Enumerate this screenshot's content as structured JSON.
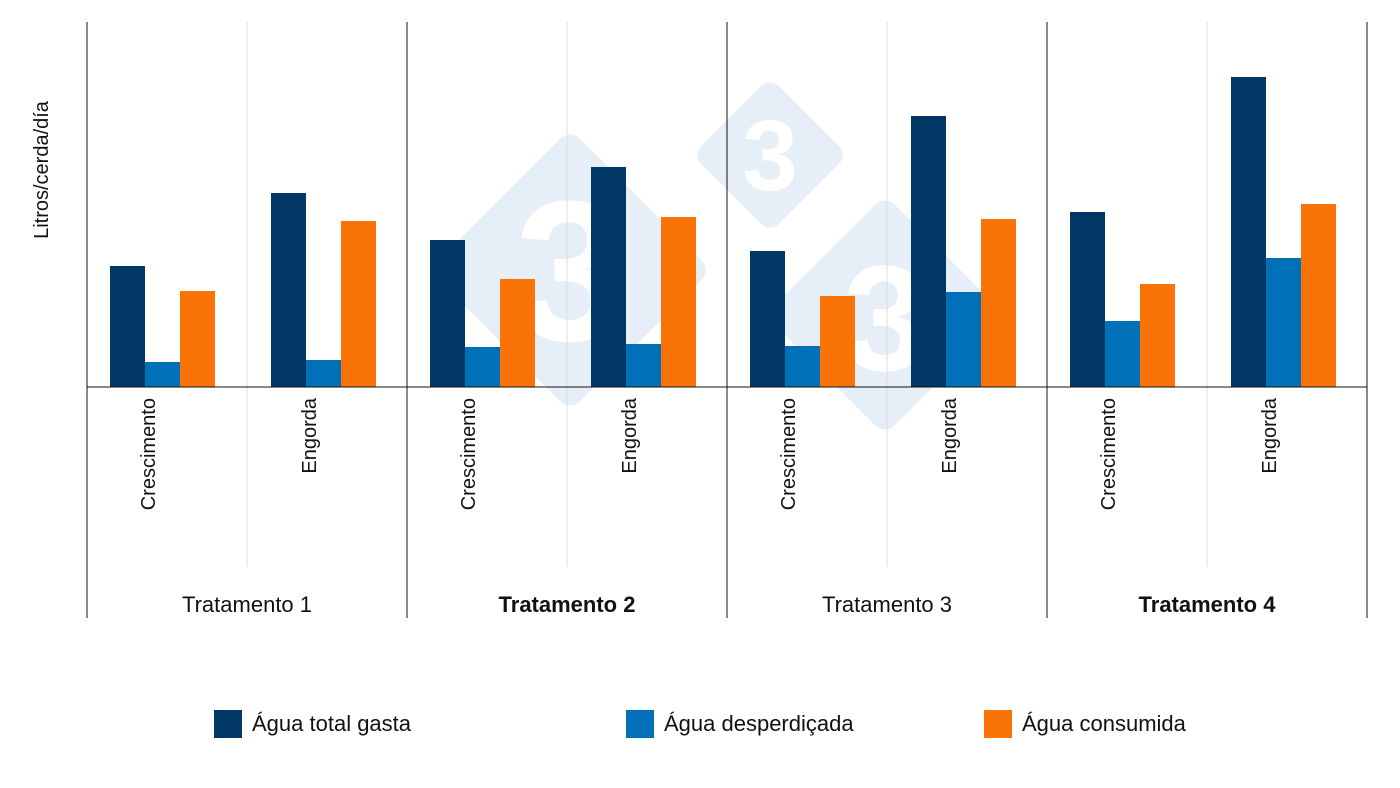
{
  "chart_data": {
    "type": "bar",
    "ylabel": "Litros/cerda/día",
    "ylim": [
      0,
      365
    ],
    "y_ticks_shown": false,
    "grid": false,
    "legend_position": "bottom",
    "groups": [
      {
        "label": "Tratamento 1",
        "bold": false
      },
      {
        "label": "Tratamento 2",
        "bold": true
      },
      {
        "label": "Tratamento 3",
        "bold": false
      },
      {
        "label": "Tratamento 4",
        "bold": true
      }
    ],
    "categories": [
      "Crescimento",
      "Engorda"
    ],
    "series": [
      {
        "name": "Água total gasta",
        "color": "#003764",
        "values": [
          [
            121,
            194
          ],
          [
            147,
            220
          ],
          [
            136,
            271
          ],
          [
            175,
            310
          ]
        ]
      },
      {
        "name": "Água desperdiçada",
        "color": "#0070b8",
        "values": [
          [
            25,
            27
          ],
          [
            40,
            43
          ],
          [
            41,
            95
          ],
          [
            66,
            129
          ]
        ]
      },
      {
        "name": "Água consumida",
        "color": "#f97306",
        "values": [
          [
            96,
            166
          ],
          [
            108,
            170
          ],
          [
            91,
            168
          ],
          [
            103,
            183
          ]
        ]
      }
    ],
    "note_units": "relative values (no y-axis tick labels shown)"
  }
}
